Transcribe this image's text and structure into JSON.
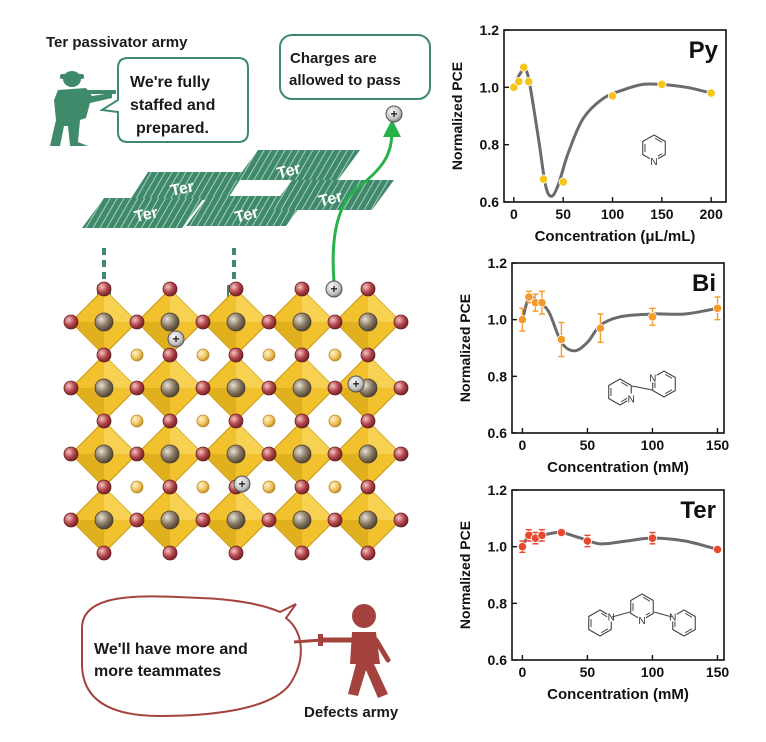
{
  "illustration": {
    "passivator_army_label": "Ter passivator army",
    "soldier_speech": [
      "We're fully",
      "staffed and",
      "prepared."
    ],
    "charges_note": [
      "Charges are",
      "allowed to pass"
    ],
    "plate_label": "Ter",
    "charge_symbol": "+",
    "defects_speech": [
      "We'll have more and",
      "more teammates"
    ],
    "defects_army_label": "Defects army",
    "colors": {
      "green": "#3f8a6a",
      "octahedron": "#f2c12e",
      "octahedron_edge": "#c99a14",
      "x_site": "#b5474e",
      "b_site": "#8a7a63",
      "a_site": "#f0c25c",
      "defect_person": "#a4433d",
      "arrow": "#27b14b"
    }
  },
  "chart_data": [
    {
      "type": "line",
      "label": "Py",
      "xlabel": "Concentration (μL/mL)",
      "ylabel": "Normalized PCE",
      "xlim": [
        -10,
        215
      ],
      "ylim": [
        0.6,
        1.2
      ],
      "xticks": [
        0,
        50,
        100,
        150,
        200
      ],
      "yticks": [
        0.6,
        0.8,
        1.0,
        1.2
      ],
      "marker_color": "#f5c518",
      "series": [
        {
          "x": [
            0,
            5,
            10,
            15,
            30,
            50,
            100,
            150,
            200
          ],
          "y": [
            1.0,
            1.02,
            1.07,
            1.02,
            0.68,
            0.67,
            0.97,
            1.01,
            0.98
          ],
          "err": [
            0,
            0,
            0,
            0,
            0,
            0,
            0,
            0,
            0
          ]
        }
      ],
      "curve": {
        "x": [
          0,
          5,
          10,
          15,
          25,
          32,
          38,
          45,
          55,
          70,
          90,
          110,
          130,
          150,
          175,
          200
        ],
        "y": [
          1.0,
          1.04,
          1.06,
          1.03,
          0.82,
          0.66,
          0.62,
          0.66,
          0.77,
          0.89,
          0.96,
          0.99,
          1.01,
          1.01,
          1.0,
          0.98
        ]
      },
      "molecule": "pyridine"
    },
    {
      "type": "line",
      "label": "Bi",
      "xlabel": "Concentration (mM)",
      "ylabel": "Normalized PCE",
      "xlim": [
        -8,
        155
      ],
      "ylim": [
        0.6,
        1.2
      ],
      "xticks": [
        0,
        50,
        100,
        150
      ],
      "yticks": [
        0.6,
        0.8,
        1.0,
        1.2
      ],
      "marker_color": "#f39a2b",
      "series": [
        {
          "x": [
            0,
            5,
            10,
            15,
            30,
            60,
            100,
            150
          ],
          "y": [
            1.0,
            1.08,
            1.06,
            1.06,
            0.93,
            0.97,
            1.01,
            1.04
          ],
          "err": [
            0.04,
            0.02,
            0.03,
            0.04,
            0.06,
            0.05,
            0.03,
            0.04
          ]
        }
      ],
      "curve": {
        "x": [
          0,
          5,
          10,
          20,
          30,
          40,
          50,
          60,
          75,
          100,
          125,
          150
        ],
        "y": [
          1.0,
          1.08,
          1.07,
          1.03,
          0.92,
          0.89,
          0.92,
          0.98,
          1.01,
          1.02,
          1.02,
          1.04
        ]
      },
      "molecule": "bipyridine"
    },
    {
      "type": "line",
      "label": "Ter",
      "xlabel": "Concentration (mM)",
      "ylabel": "Normalized PCE",
      "xlim": [
        -8,
        155
      ],
      "ylim": [
        0.6,
        1.2
      ],
      "xticks": [
        0,
        50,
        100,
        150
      ],
      "yticks": [
        0.6,
        0.8,
        1.0,
        1.2
      ],
      "marker_color": "#e8492e",
      "series": [
        {
          "x": [
            0,
            5,
            10,
            15,
            30,
            50,
            100,
            150
          ],
          "y": [
            1.0,
            1.04,
            1.03,
            1.04,
            1.05,
            1.02,
            1.03,
            0.99
          ],
          "err": [
            0.02,
            0.02,
            0.02,
            0.02,
            0.01,
            0.02,
            0.02,
            0.01
          ]
        }
      ],
      "curve": {
        "x": [
          0,
          5,
          10,
          20,
          30,
          45,
          60,
          80,
          100,
          125,
          150
        ],
        "y": [
          1.0,
          1.04,
          1.035,
          1.045,
          1.05,
          1.03,
          1.01,
          1.02,
          1.03,
          1.02,
          0.99
        ]
      },
      "molecule": "terpyridine"
    }
  ]
}
